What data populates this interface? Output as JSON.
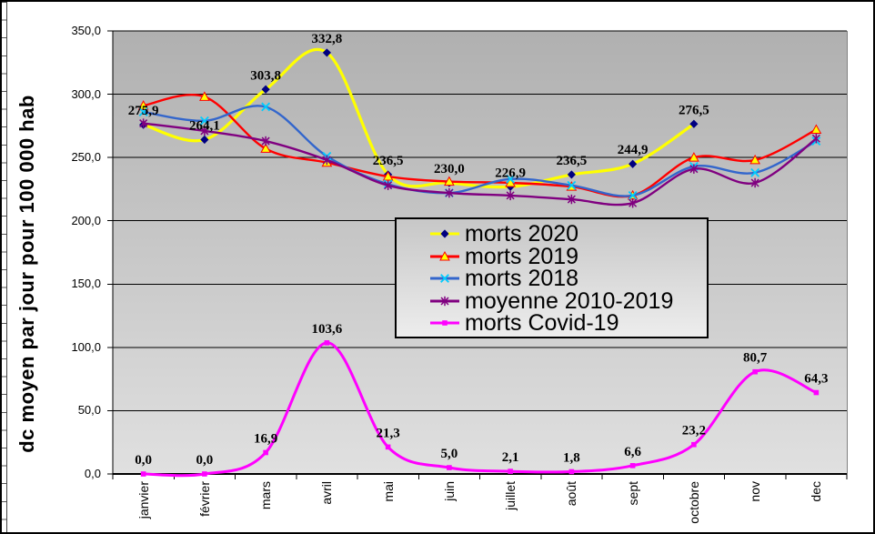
{
  "y_axis": {
    "title": "dc moyen par jour pour 100 000 hab",
    "ticks": [
      "350,0",
      "300,0",
      "250,0",
      "200,0",
      "150,0",
      "100,0",
      "50,0",
      "0,0"
    ]
  },
  "x_axis": {
    "categories": [
      "janvier",
      "février",
      "mars",
      "avril",
      "mai",
      "juin",
      "juillet",
      "août",
      "sept",
      "octobre",
      "nov",
      "dec"
    ]
  },
  "chart_data": {
    "type": "line",
    "smooth": true,
    "title": "",
    "xlabel": "",
    "ylabel": "dc moyen par jour pour 100 000 hab",
    "ylim": [
      0,
      350
    ],
    "y_step": 50,
    "grid": true,
    "legend_position": "center-overlay",
    "categories": [
      "janvier",
      "février",
      "mars",
      "avril",
      "mai",
      "juin",
      "juillet",
      "août",
      "sept",
      "octobre",
      "nov",
      "dec"
    ],
    "series": [
      {
        "name": "morts 2020",
        "line_color": "#FFFF00",
        "line_width": 3.2,
        "marker": "diamond",
        "marker_color": "#000080",
        "values": [
          275.9,
          264.1,
          303.8,
          332.8,
          236.5,
          230.0,
          226.9,
          236.5,
          244.9,
          276.5,
          null,
          null
        ],
        "labels": [
          "275,9",
          "264,1",
          "303,8",
          "332,8",
          "236,5",
          "230,0",
          "226,9",
          "236,5",
          "244,9",
          "276,5",
          null,
          null
        ]
      },
      {
        "name": "morts 2019",
        "line_color": "#FF0000",
        "line_width": 2.4,
        "marker": "triangle",
        "marker_color": "#FFFF00",
        "marker_stroke": "#FF0000",
        "values": [
          291,
          298,
          257,
          246,
          235,
          231,
          230,
          227,
          220,
          250,
          248,
          272
        ],
        "labels": null
      },
      {
        "name": "morts 2018",
        "line_color": "#3366CC",
        "line_width": 2.4,
        "marker": "x",
        "marker_color": "#00CCFF",
        "values": [
          286,
          279,
          290,
          251,
          229,
          222,
          233,
          228,
          220,
          243,
          238,
          263
        ],
        "labels": null
      },
      {
        "name": "moyenne 2010-2019",
        "line_color": "#800080",
        "line_width": 2.4,
        "marker": "asterisk",
        "marker_color": "#800080",
        "values": [
          277,
          271,
          263,
          248,
          228,
          222,
          220,
          217,
          214,
          241,
          230,
          265
        ],
        "labels": null
      },
      {
        "name": "morts Covid-19",
        "line_color": "#FF00FF",
        "line_width": 3,
        "marker": "square",
        "marker_color": "#FF00FF",
        "values": [
          0.0,
          0.0,
          16.9,
          103.6,
          21.3,
          5.0,
          2.1,
          1.8,
          6.6,
          23.2,
          80.7,
          64.3
        ],
        "labels": [
          "0,0",
          "0,0",
          "16,9",
          "103,6",
          "21,3",
          "5,0",
          "2,1",
          "1,8",
          "6,6",
          "23,2",
          "80,7",
          "64,3"
        ]
      }
    ],
    "colors": {
      "plot_bg_top": "#B0B0B0",
      "plot_bg_bottom": "#E0E0E0",
      "gridline": "#000000",
      "axis": "#000000"
    }
  }
}
